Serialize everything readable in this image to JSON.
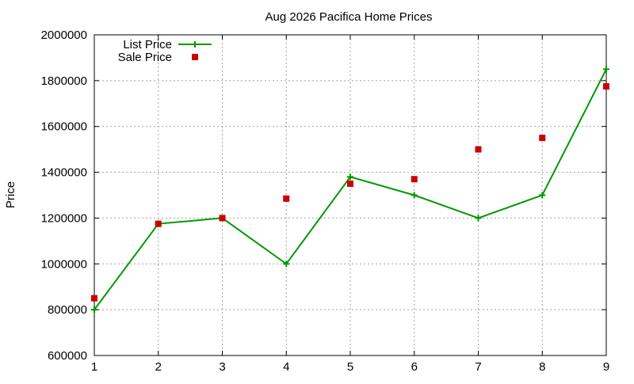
{
  "chart_data": {
    "type": "line",
    "title": "Aug 2026 Pacifica Home Prices",
    "xlabel": "",
    "ylabel": "Price",
    "x": [
      1,
      2,
      3,
      4,
      5,
      6,
      7,
      8,
      9
    ],
    "xlim": [
      1,
      9
    ],
    "ylim": [
      600000,
      2000000
    ],
    "x_ticks": [
      "1",
      "2",
      "3",
      "4",
      "5",
      "6",
      "7",
      "8",
      "9"
    ],
    "y_ticks": [
      "600000",
      "800000",
      "1000000",
      "1200000",
      "1400000",
      "1600000",
      "1800000",
      "2000000"
    ],
    "grid": true,
    "legend_position": "top-left",
    "series": [
      {
        "name": "List Price",
        "style": "line-with-plus-markers",
        "color": "#009900",
        "values": [
          800000,
          1175000,
          1200000,
          1000000,
          1380000,
          1300000,
          1200000,
          1300000,
          1850000
        ]
      },
      {
        "name": "Sale Price",
        "style": "square-markers",
        "color": "#cc0000",
        "values": [
          850000,
          1175000,
          1200000,
          1285000,
          1350000,
          1370000,
          1500000,
          1550000,
          1775000
        ]
      }
    ]
  }
}
